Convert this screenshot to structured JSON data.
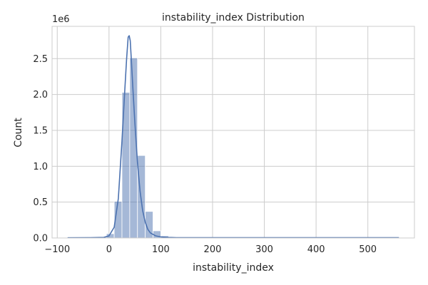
{
  "chart_data": {
    "type": "bar",
    "title": "instability_index Distribution",
    "xlabel": "instability_index",
    "ylabel": "Count",
    "y_offset_label": "1e6",
    "xlim": [
      -110,
      590
    ],
    "ylim": [
      0,
      2.95
    ],
    "x_ticks": [
      -100,
      0,
      100,
      200,
      300,
      400,
      500
    ],
    "x_tick_labels": [
      "−100",
      "0",
      "100",
      "200",
      "300",
      "400",
      "500"
    ],
    "y_ticks": [
      0,
      0.5,
      1.0,
      1.5,
      2.0,
      2.5
    ],
    "y_tick_labels": [
      "0.0",
      "0.5",
      "1.0",
      "1.5",
      "2.0",
      "2.5"
    ],
    "grid": true,
    "bar_color": "#4c72b0",
    "kde_color": "#4c72b0",
    "bins": [
      {
        "x0": -80,
        "x1": -65,
        "count": 0.001
      },
      {
        "x0": -65,
        "x1": -50,
        "count": 0.001
      },
      {
        "x0": -50,
        "x1": -35,
        "count": 0.002
      },
      {
        "x0": -35,
        "x1": -20,
        "count": 0.002
      },
      {
        "x0": -20,
        "x1": -5,
        "count": 0.005
      },
      {
        "x0": -5,
        "x1": 10,
        "count": 0.06
      },
      {
        "x0": 10,
        "x1": 25,
        "count": 0.51
      },
      {
        "x0": 25,
        "x1": 40,
        "count": 2.03
      },
      {
        "x0": 40,
        "x1": 55,
        "count": 2.51
      },
      {
        "x0": 55,
        "x1": 70,
        "count": 1.15
      },
      {
        "x0": 70,
        "x1": 85,
        "count": 0.37
      },
      {
        "x0": 85,
        "x1": 100,
        "count": 0.1
      },
      {
        "x0": 100,
        "x1": 115,
        "count": 0.03
      },
      {
        "x0": 115,
        "x1": 130,
        "count": 0.01
      },
      {
        "x0": 130,
        "x1": 560,
        "count": 0.005
      }
    ],
    "kde": {
      "x": [
        -80,
        -40,
        -10,
        0,
        10,
        18,
        25,
        30,
        34,
        37,
        39,
        41,
        43,
        46,
        50,
        55,
        60,
        65,
        70,
        75,
        80,
        90,
        100,
        115,
        130,
        160,
        200,
        300,
        400,
        500,
        560
      ],
      "y": [
        0.003,
        0.004,
        0.008,
        0.03,
        0.15,
        0.55,
        1.35,
        2.0,
        2.5,
        2.8,
        2.82,
        2.75,
        2.5,
        2.1,
        1.6,
        1.05,
        0.65,
        0.38,
        0.22,
        0.12,
        0.07,
        0.03,
        0.015,
        0.008,
        0.005,
        0.004,
        0.004,
        0.004,
        0.004,
        0.004,
        0.004
      ]
    }
  }
}
